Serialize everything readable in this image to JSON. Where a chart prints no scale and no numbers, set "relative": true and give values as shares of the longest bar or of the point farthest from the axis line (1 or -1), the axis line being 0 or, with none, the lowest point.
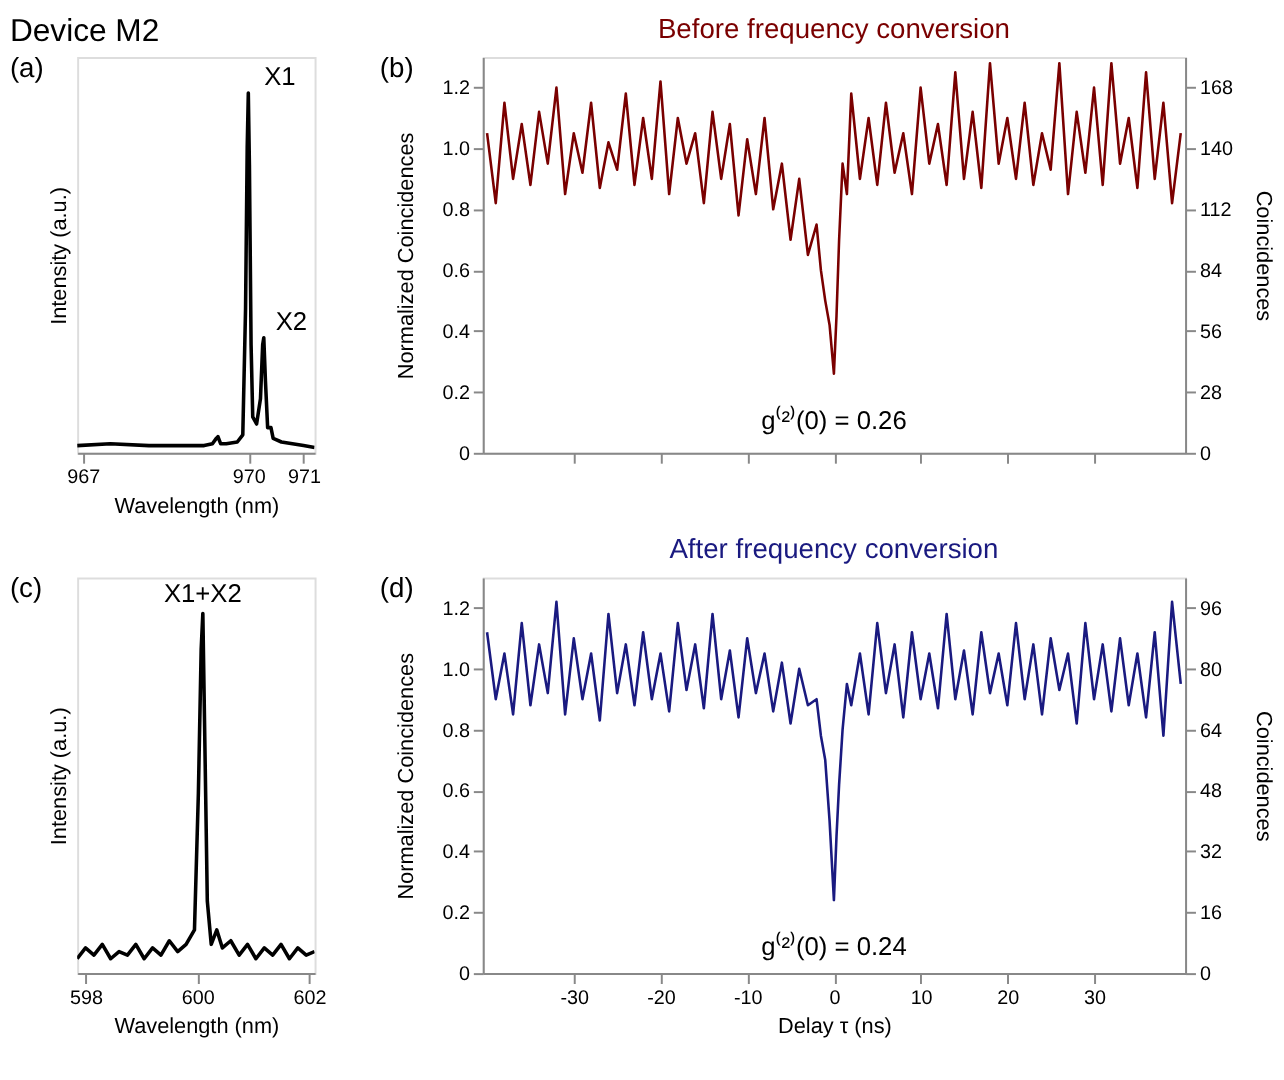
{
  "chart_data": [
    {
      "type": "line",
      "title": "Device M2",
      "xlabel": "Wavelength (nm)",
      "ylabel": "Intensity (a.u.)",
      "relative": true,
      "xlim": [
        966.9,
        971.2
      ],
      "xticks": [
        967,
        970,
        971
      ],
      "grid": false,
      "annotations": [
        "(a)",
        {
          "text": "X1",
          "x": 970.0,
          "y": 1.0
        },
        {
          "text": "X2",
          "x": 970.28,
          "y": 0.32
        }
      ],
      "series": [
        {
          "color": "#000000",
          "x": [
            966.9,
            967.5,
            968.2,
            968.96,
            969.2,
            969.35,
            969.42,
            969.45,
            969.5,
            969.6,
            969.8,
            969.9,
            969.95,
            969.98,
            970.0,
            970.02,
            970.05,
            970.08,
            970.15,
            970.22,
            970.26,
            970.28,
            970.31,
            970.35,
            970.41,
            970.45,
            970.6,
            970.8,
            971.0,
            971.2
          ],
          "values": [
            0.02,
            0.025,
            0.02,
            0.02,
            0.02,
            0.025,
            0.04,
            0.045,
            0.025,
            0.025,
            0.03,
            0.05,
            0.4,
            0.85,
            1.0,
            0.8,
            0.3,
            0.1,
            0.08,
            0.15,
            0.3,
            0.32,
            0.2,
            0.07,
            0.07,
            0.04,
            0.03,
            0.025,
            0.02,
            0.015
          ]
        }
      ]
    },
    {
      "type": "line",
      "title": "Before frequency conversion",
      "ylabel": "Normalized Coincidences",
      "y2label": "Coincidences",
      "xlim": [
        -40.5,
        40.5
      ],
      "xticks": [
        -30,
        -20,
        -10,
        0,
        10,
        20,
        30
      ],
      "ylim": [
        0,
        1.3
      ],
      "yticks": [
        0,
        0.2,
        0.4,
        0.6,
        0.8,
        {
          "value": 1,
          "label": "1.0"
        },
        1.2
      ],
      "y2lim": [
        0,
        182
      ],
      "y2ticks": [
        0,
        28,
        56,
        84,
        112,
        140,
        168
      ],
      "tick_labels": "y",
      "grid": false,
      "annotations": [
        "(b)",
        {
          "text": "g⁽²⁾(0) = 0.26",
          "x": 0,
          "y": 0.26
        }
      ],
      "series": [
        {
          "color": "#7a0000",
          "x": [
            -40,
            -39,
            -38,
            -37,
            -36,
            -35,
            -34,
            -33,
            -32,
            -31,
            -30,
            -29,
            -28,
            -27,
            -26,
            -25,
            -24,
            -23,
            -22,
            -21,
            -20,
            -19,
            -18,
            -17,
            -16,
            -15,
            -14,
            -13,
            -12,
            -11,
            -10,
            -9,
            -8,
            -7,
            -6,
            -5,
            -4,
            -3,
            -2,
            -1.5,
            -1,
            -0.5,
            0,
            0.3,
            0.6,
            1,
            1.5,
            2,
            3,
            4,
            5,
            6,
            7,
            8,
            9,
            10,
            11,
            12,
            13,
            14,
            15,
            16,
            17,
            18,
            19,
            20,
            21,
            22,
            23,
            24,
            25,
            26,
            27,
            28,
            29,
            30,
            31,
            32,
            33,
            34,
            35,
            36,
            37,
            38,
            39,
            40
          ],
          "values": [
            1.05,
            0.82,
            1.15,
            0.9,
            1.08,
            0.88,
            1.12,
            0.95,
            1.2,
            0.85,
            1.05,
            0.92,
            1.15,
            0.87,
            1.02,
            0.93,
            1.18,
            0.88,
            1.1,
            0.9,
            1.22,
            0.85,
            1.1,
            0.95,
            1.05,
            0.82,
            1.12,
            0.9,
            1.08,
            0.78,
            1.03,
            0.85,
            1.1,
            0.8,
            0.95,
            0.7,
            0.9,
            0.65,
            0.75,
            0.6,
            0.5,
            0.42,
            0.26,
            0.45,
            0.7,
            0.95,
            0.85,
            1.18,
            0.9,
            1.1,
            0.88,
            1.15,
            0.92,
            1.05,
            0.85,
            1.2,
            0.95,
            1.08,
            0.88,
            1.25,
            0.9,
            1.12,
            0.87,
            1.28,
            0.95,
            1.1,
            0.9,
            1.15,
            0.88,
            1.05,
            0.93,
            1.28,
            0.85,
            1.12,
            0.92,
            1.2,
            0.88,
            1.28,
            0.95,
            1.1,
            0.87,
            1.25,
            0.9,
            1.15,
            0.82,
            1.05
          ]
        }
      ]
    },
    {
      "type": "line",
      "xlabel": "Wavelength (nm)",
      "ylabel": "Intensity (a.u.)",
      "relative": true,
      "xlim": [
        597.85,
        602.1
      ],
      "xticks": [
        598,
        600,
        602
      ],
      "grid": false,
      "annotations": [
        "(c)",
        {
          "text": "X1+X2",
          "x": 600.1,
          "y": 1.0
        }
      ],
      "series": [
        {
          "color": "#000000",
          "x": [
            597.85,
            598.0,
            598.15,
            598.3,
            598.45,
            598.6,
            598.75,
            598.9,
            599.05,
            599.2,
            599.35,
            599.5,
            599.65,
            599.8,
            599.95,
            600.02,
            600.07,
            600.1,
            600.13,
            600.18,
            600.25,
            600.35,
            600.45,
            600.6,
            600.75,
            600.9,
            601.05,
            601.2,
            601.35,
            601.5,
            601.65,
            601.8,
            601.95,
            602.1
          ],
          "values": [
            0.04,
            0.07,
            0.05,
            0.08,
            0.04,
            0.06,
            0.05,
            0.08,
            0.04,
            0.07,
            0.05,
            0.09,
            0.06,
            0.08,
            0.12,
            0.5,
            0.9,
            1.0,
            0.7,
            0.2,
            0.08,
            0.12,
            0.07,
            0.09,
            0.05,
            0.08,
            0.04,
            0.07,
            0.05,
            0.08,
            0.04,
            0.07,
            0.05,
            0.06
          ]
        }
      ]
    },
    {
      "type": "line",
      "title": "After frequency conversion",
      "xlabel": "Delay τ (ns)",
      "ylabel": "Normalized Coincidences",
      "y2label": "Coincidences",
      "xlim": [
        -40.5,
        40.5
      ],
      "xticks": [
        -30,
        -20,
        -10,
        0,
        10,
        20,
        30
      ],
      "ylim": [
        0,
        1.3
      ],
      "yticks": [
        0,
        0.2,
        0.4,
        0.6,
        0.8,
        {
          "value": 1,
          "label": "1.0"
        },
        1.2
      ],
      "y2lim": [
        0,
        104
      ],
      "y2ticks": [
        0,
        16,
        32,
        48,
        64,
        80,
        96
      ],
      "grid": false,
      "annotations": [
        "(d)",
        {
          "text": "g⁽²⁾(0) = 0.24",
          "x": 0,
          "y": 0.24
        }
      ],
      "series": [
        {
          "color": "#1a1a80",
          "x": [
            -40,
            -39,
            -38,
            -37,
            -36,
            -35,
            -34,
            -33,
            -32,
            -31,
            -30,
            -29,
            -28,
            -27,
            -26,
            -25,
            -24,
            -23,
            -22,
            -21,
            -20,
            -19,
            -18,
            -17,
            -16,
            -15,
            -14,
            -13,
            -12,
            -11,
            -10,
            -9,
            -8,
            -7,
            -6,
            -5,
            -4,
            -3,
            -2,
            -1.5,
            -1,
            -0.5,
            0,
            0.3,
            0.6,
            1,
            1.5,
            2,
            3,
            4,
            5,
            6,
            7,
            8,
            9,
            10,
            11,
            12,
            13,
            14,
            15,
            16,
            17,
            18,
            19,
            20,
            21,
            22,
            23,
            24,
            25,
            26,
            27,
            28,
            29,
            30,
            31,
            32,
            33,
            34,
            35,
            36,
            37,
            38,
            39,
            40
          ],
          "values": [
            1.12,
            0.9,
            1.05,
            0.85,
            1.15,
            0.88,
            1.08,
            0.92,
            1.22,
            0.85,
            1.1,
            0.9,
            1.05,
            0.83,
            1.18,
            0.92,
            1.08,
            0.88,
            1.12,
            0.9,
            1.05,
            0.86,
            1.15,
            0.93,
            1.08,
            0.87,
            1.18,
            0.9,
            1.06,
            0.84,
            1.1,
            0.92,
            1.05,
            0.86,
            1.02,
            0.82,
            1.0,
            0.88,
            0.9,
            0.78,
            0.7,
            0.5,
            0.24,
            0.45,
            0.62,
            0.8,
            0.95,
            0.88,
            1.05,
            0.85,
            1.15,
            0.92,
            1.08,
            0.84,
            1.12,
            0.9,
            1.05,
            0.87,
            1.18,
            0.9,
            1.06,
            0.85,
            1.12,
            0.92,
            1.05,
            0.88,
            1.15,
            0.9,
            1.08,
            0.85,
            1.1,
            0.93,
            1.05,
            0.82,
            1.15,
            0.9,
            1.08,
            0.86,
            1.1,
            0.88,
            1.05,
            0.84,
            1.12,
            0.78,
            1.22,
            0.95
          ]
        }
      ]
    }
  ]
}
